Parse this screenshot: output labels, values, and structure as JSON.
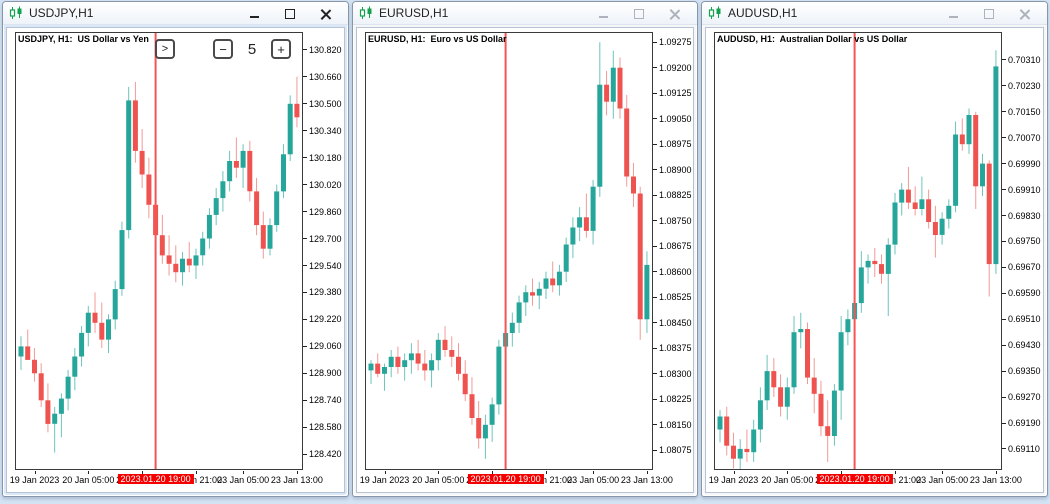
{
  "colors": {
    "bull_body": "#26a69a",
    "bull_wick": "#6cc4bb",
    "bear_body": "#ef5350",
    "bear_wick": "#f29a96",
    "event_line": "#f55555",
    "event_label_bg": "#f40000",
    "event_label_fg": "#ffffff",
    "frame": "#3a3a3a"
  },
  "windows": [
    {
      "title": "USDJPY,H1",
      "active": true,
      "chart": {
        "symbol_label": "USDJPY, H1:  US Dollar vs Yen",
        "type": "candlestick",
        "price_max": 130.92,
        "price_min": 128.332,
        "y_ticks": [
          "130.820",
          "130.660",
          "130.500",
          "130.340",
          "130.180",
          "130.020",
          "129.860",
          "129.700",
          "129.540",
          "129.380",
          "129.220",
          "129.060",
          "128.900",
          "128.740",
          "128.580",
          "128.420"
        ],
        "x_ticks": [
          {
            "label": "19 Jan 2023",
            "bar": 2
          },
          {
            "label": "20 Jan 05:00",
            "bar": 10
          },
          {
            "label": "20 Jan 13:00",
            "bar": 18
          },
          {
            "label": "20 Jan 21:00",
            "bar": 26
          },
          {
            "label": "23 Jan 05:00",
            "bar": 33
          },
          {
            "label": "23 Jan 13:00",
            "bar": 41
          }
        ],
        "event_line": {
          "bar": 20,
          "label": "2023.01.20 19:00"
        },
        "candles": [
          [
            129.0,
            129.12,
            128.92,
            129.06
          ],
          [
            129.06,
            129.16,
            128.98,
            128.98
          ],
          [
            128.98,
            129.05,
            128.85,
            128.9
          ],
          [
            128.9,
            128.96,
            128.7,
            128.74
          ],
          [
            128.74,
            128.84,
            128.55,
            128.6
          ],
          [
            128.6,
            128.7,
            128.43,
            128.66
          ],
          [
            128.66,
            128.78,
            128.52,
            128.75
          ],
          [
            128.75,
            128.92,
            128.68,
            128.88
          ],
          [
            128.88,
            129.05,
            128.8,
            129.0
          ],
          [
            129.0,
            129.18,
            128.94,
            129.14
          ],
          [
            129.14,
            129.3,
            129.06,
            129.26
          ],
          [
            129.26,
            129.38,
            129.14,
            129.2
          ],
          [
            129.2,
            129.32,
            129.05,
            129.1
          ],
          [
            129.1,
            129.25,
            129.02,
            129.22
          ],
          [
            129.22,
            129.45,
            129.16,
            129.4
          ],
          [
            129.4,
            129.8,
            129.36,
            129.75
          ],
          [
            129.75,
            130.6,
            129.7,
            130.52
          ],
          [
            130.52,
            130.63,
            130.15,
            130.22
          ],
          [
            130.22,
            130.35,
            130.0,
            130.08
          ],
          [
            130.08,
            130.18,
            129.82,
            129.9
          ],
          [
            129.9,
            129.98,
            129.66,
            129.72
          ],
          [
            129.72,
            129.84,
            129.55,
            129.6
          ],
          [
            129.6,
            129.72,
            129.48,
            129.55
          ],
          [
            129.55,
            129.66,
            129.44,
            129.5
          ],
          [
            129.5,
            129.62,
            129.42,
            129.58
          ],
          [
            129.58,
            129.68,
            129.5,
            129.54
          ],
          [
            129.54,
            129.64,
            129.46,
            129.6
          ],
          [
            129.6,
            129.74,
            129.54,
            129.7
          ],
          [
            129.7,
            129.88,
            129.64,
            129.84
          ],
          [
            129.84,
            130.0,
            129.78,
            129.94
          ],
          [
            129.94,
            130.1,
            129.86,
            130.04
          ],
          [
            130.04,
            130.22,
            129.98,
            130.16
          ],
          [
            130.16,
            130.3,
            130.06,
            130.12
          ],
          [
            130.12,
            130.26,
            130.0,
            130.22
          ],
          [
            130.22,
            130.28,
            129.92,
            129.98
          ],
          [
            129.98,
            130.06,
            129.72,
            129.78
          ],
          [
            129.78,
            129.86,
            129.58,
            129.64
          ],
          [
            129.64,
            129.82,
            129.6,
            129.78
          ],
          [
            129.78,
            130.02,
            129.74,
            129.98
          ],
          [
            129.98,
            130.26,
            129.94,
            130.2
          ],
          [
            130.2,
            130.55,
            130.16,
            130.5
          ],
          [
            130.5,
            130.66,
            130.36,
            130.42
          ]
        ],
        "panel": {
          "forward_label": ">",
          "minus_label": "−",
          "value": "5",
          "plus_label": "+"
        }
      }
    },
    {
      "title": "EURUSD,H1",
      "active": false,
      "chart": {
        "symbol_label": "EURUSD, H1:  Euro vs US Dollar",
        "type": "candlestick",
        "price_max": 1.09302,
        "price_min": 1.0802,
        "y_ticks": [
          "1.09275",
          "1.09200",
          "1.09125",
          "1.09050",
          "1.08975",
          "1.08900",
          "1.08825",
          "1.08750",
          "1.08675",
          "1.08600",
          "1.08525",
          "1.08450",
          "1.08375",
          "1.08300",
          "1.08225",
          "1.08150",
          "1.08075"
        ],
        "x_ticks": [
          {
            "label": "19 Jan 2023",
            "bar": 2
          },
          {
            "label": "20 Jan 05:00",
            "bar": 10
          },
          {
            "label": "20 Jan 13:00",
            "bar": 18
          },
          {
            "label": "20 Jan 21:00",
            "bar": 26
          },
          {
            "label": "23 Jan 05:00",
            "bar": 33
          },
          {
            "label": "23 Jan 13:00",
            "bar": 41
          }
        ],
        "event_line": {
          "bar": 20,
          "label": "2023.01.20 19:00"
        },
        "candles": [
          [
            1.0831,
            1.0834,
            1.0827,
            1.0833
          ],
          [
            1.0833,
            1.0836,
            1.0829,
            1.083
          ],
          [
            1.083,
            1.0833,
            1.0825,
            1.0832
          ],
          [
            1.0832,
            1.0837,
            1.0829,
            1.0835
          ],
          [
            1.0835,
            1.0838,
            1.083,
            1.0832
          ],
          [
            1.0832,
            1.0836,
            1.0828,
            1.0834
          ],
          [
            1.0834,
            1.0839,
            1.083,
            1.0836
          ],
          [
            1.0836,
            1.084,
            1.0831,
            1.0833
          ],
          [
            1.0833,
            1.0837,
            1.0828,
            1.0831
          ],
          [
            1.0831,
            1.0836,
            1.0826,
            1.0834
          ],
          [
            1.0834,
            1.0842,
            1.0831,
            1.084
          ],
          [
            1.084,
            1.0844,
            1.0835,
            1.0837
          ],
          [
            1.0837,
            1.0841,
            1.0832,
            1.0835
          ],
          [
            1.0835,
            1.0839,
            1.0828,
            1.083
          ],
          [
            1.083,
            1.0834,
            1.0822,
            1.0824
          ],
          [
            1.0824,
            1.0829,
            1.0815,
            1.0817
          ],
          [
            1.0817,
            1.0822,
            1.0808,
            1.0811
          ],
          [
            1.0811,
            1.0818,
            1.0805,
            1.0815
          ],
          [
            1.0815,
            1.0823,
            1.081,
            1.0821
          ],
          [
            1.0821,
            1.084,
            1.0818,
            1.0838
          ],
          [
            1.0838,
            1.0845,
            1.0833,
            1.0842
          ],
          [
            1.0842,
            1.0848,
            1.0838,
            1.0845
          ],
          [
            1.0845,
            1.0853,
            1.0842,
            1.0851
          ],
          [
            1.0851,
            1.0856,
            1.0847,
            1.0854
          ],
          [
            1.0854,
            1.0858,
            1.085,
            1.0853
          ],
          [
            1.0853,
            1.0857,
            1.0849,
            1.0855
          ],
          [
            1.0855,
            1.086,
            1.0852,
            1.0858
          ],
          [
            1.0858,
            1.0863,
            1.0854,
            1.0856
          ],
          [
            1.0856,
            1.0862,
            1.0853,
            1.086
          ],
          [
            1.086,
            1.087,
            1.0857,
            1.0868
          ],
          [
            1.0868,
            1.0876,
            1.0864,
            1.0873
          ],
          [
            1.0873,
            1.0879,
            1.0869,
            1.0876
          ],
          [
            1.0876,
            1.0883,
            1.087,
            1.0872
          ],
          [
            1.0872,
            1.0887,
            1.0868,
            1.0885
          ],
          [
            1.0885,
            1.09275,
            1.0882,
            1.0915
          ],
          [
            1.0915,
            1.0919,
            1.0906,
            1.091
          ],
          [
            1.091,
            1.0925,
            1.0905,
            1.092
          ],
          [
            1.092,
            1.0923,
            1.0905,
            1.0908
          ],
          [
            1.0908,
            1.0912,
            1.0885,
            1.0888
          ],
          [
            1.0888,
            1.0892,
            1.0879,
            1.0883
          ],
          [
            1.0883,
            1.0885,
            1.084,
            1.0846
          ],
          [
            1.0846,
            1.0866,
            1.0842,
            1.0862
          ]
        ]
      }
    },
    {
      "title": "AUDUSD,H1",
      "active": false,
      "chart": {
        "symbol_label": "AUDUSD, H1:  Australian Dollar vs US Dollar",
        "type": "candlestick",
        "price_max": 0.70393,
        "price_min": 0.69048,
        "y_ticks": [
          "0.70310",
          "0.70230",
          "0.70150",
          "0.70070",
          "0.69990",
          "0.69910",
          "0.69830",
          "0.69750",
          "0.69670",
          "0.69590",
          "0.69510",
          "0.69430",
          "0.69350",
          "0.69270",
          "0.69190",
          "0.69110"
        ],
        "x_ticks": [
          {
            "label": "19 Jan 2023",
            "bar": 2
          },
          {
            "label": "20 Jan 05:00",
            "bar": 10
          },
          {
            "label": "20 Jan 13:00",
            "bar": 18
          },
          {
            "label": "20 Jan 21:00",
            "bar": 26
          },
          {
            "label": "23 Jan 05:00",
            "bar": 33
          },
          {
            "label": "23 Jan 13:00",
            "bar": 41
          }
        ],
        "event_line": {
          "bar": 20,
          "label": "2023.01.20 19:00"
        },
        "candles": [
          [
            0.6917,
            0.6923,
            0.6913,
            0.6921
          ],
          [
            0.6921,
            0.6924,
            0.6909,
            0.6912
          ],
          [
            0.6912,
            0.6916,
            0.6905,
            0.6908
          ],
          [
            0.6908,
            0.6914,
            0.6904,
            0.6911
          ],
          [
            0.6911,
            0.6917,
            0.6907,
            0.691
          ],
          [
            0.691,
            0.692,
            0.6907,
            0.6917
          ],
          [
            0.6917,
            0.693,
            0.6913,
            0.6926
          ],
          [
            0.6926,
            0.694,
            0.6923,
            0.6935
          ],
          [
            0.6935,
            0.6939,
            0.6927,
            0.693
          ],
          [
            0.693,
            0.6934,
            0.6921,
            0.6924
          ],
          [
            0.6924,
            0.6933,
            0.692,
            0.693
          ],
          [
            0.693,
            0.6952,
            0.6928,
            0.6947
          ],
          [
            0.6947,
            0.6953,
            0.6942,
            0.6948
          ],
          [
            0.6948,
            0.695,
            0.6931,
            0.6933
          ],
          [
            0.6933,
            0.6939,
            0.6922,
            0.6928
          ],
          [
            0.6928,
            0.6932,
            0.6915,
            0.6918
          ],
          [
            0.6918,
            0.6926,
            0.6907,
            0.6915
          ],
          [
            0.6915,
            0.6931,
            0.6912,
            0.6929
          ],
          [
            0.6929,
            0.6952,
            0.692,
            0.6947
          ],
          [
            0.6947,
            0.6954,
            0.6943,
            0.6951
          ],
          [
            0.6951,
            0.6959,
            0.6946,
            0.6956
          ],
          [
            0.6956,
            0.6972,
            0.6953,
            0.6967
          ],
          [
            0.6967,
            0.6971,
            0.6962,
            0.6969
          ],
          [
            0.6969,
            0.6973,
            0.6964,
            0.6968
          ],
          [
            0.6968,
            0.6971,
            0.6962,
            0.6965
          ],
          [
            0.6965,
            0.6976,
            0.6952,
            0.6974
          ],
          [
            0.6974,
            0.699,
            0.6971,
            0.6987
          ],
          [
            0.6987,
            0.6993,
            0.6983,
            0.6991
          ],
          [
            0.6991,
            0.6998,
            0.6985,
            0.6987
          ],
          [
            0.6987,
            0.6992,
            0.6983,
            0.6985
          ],
          [
            0.6985,
            0.6995,
            0.6983,
            0.6988
          ],
          [
            0.6988,
            0.6991,
            0.6979,
            0.6981
          ],
          [
            0.6981,
            0.6986,
            0.697,
            0.6977
          ],
          [
            0.6977,
            0.6984,
            0.6974,
            0.6982
          ],
          [
            0.6982,
            0.6988,
            0.6979,
            0.6986
          ],
          [
            0.6986,
            0.7012,
            0.6984,
            0.7008
          ],
          [
            0.7008,
            0.7013,
            0.7003,
            0.7005
          ],
          [
            0.7005,
            0.7016,
            0.7002,
            0.7014
          ],
          [
            0.7014,
            0.7015,
            0.6985,
            0.6992
          ],
          [
            0.6992,
            0.7002,
            0.6989,
            0.6999
          ],
          [
            0.6999,
            0.7,
            0.6958,
            0.6968
          ],
          [
            0.6968,
            0.7034,
            0.6965,
            0.7029
          ]
        ]
      }
    }
  ]
}
